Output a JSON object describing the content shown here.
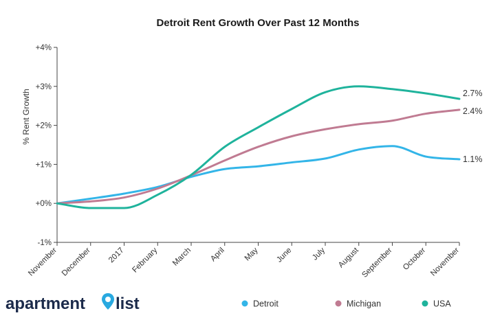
{
  "chart_data": {
    "type": "line",
    "title": "Detroit Rent Growth Over Past 12 Months",
    "ylabel": "% Rent Growth",
    "ylim": [
      -1,
      4
    ],
    "y_ticks": [
      -1,
      0,
      1,
      2,
      3,
      4
    ],
    "y_tick_labels": [
      "-1%",
      "+0%",
      "+1%",
      "+2%",
      "+3%",
      "+4%"
    ],
    "categories": [
      "November",
      "December",
      "2017",
      "February",
      "March",
      "April",
      "May",
      "June",
      "July",
      "August",
      "September",
      "October",
      "November"
    ],
    "series": [
      {
        "name": "Detroit",
        "color": "#33b5e8",
        "values": [
          0.0,
          0.12,
          0.25,
          0.42,
          0.68,
          0.88,
          0.95,
          1.05,
          1.15,
          1.38,
          1.47,
          1.2,
          1.13
        ],
        "end_label": "1.1%"
      },
      {
        "name": "Michigan",
        "color": "#c07b92",
        "values": [
          0.0,
          0.05,
          0.15,
          0.38,
          0.72,
          1.1,
          1.45,
          1.72,
          1.9,
          2.03,
          2.12,
          2.3,
          2.4
        ],
        "end_label": "2.4%"
      },
      {
        "name": "USA",
        "color": "#1fb39c",
        "values": [
          0.0,
          -0.12,
          -0.12,
          0.22,
          0.73,
          1.45,
          1.95,
          2.42,
          2.85,
          3.0,
          2.93,
          2.82,
          2.68
        ],
        "end_label": "2.7%"
      }
    ],
    "grid": false,
    "legend": "bottom-right"
  },
  "logo": {
    "text_left": "apartment",
    "text_right": "list"
  }
}
